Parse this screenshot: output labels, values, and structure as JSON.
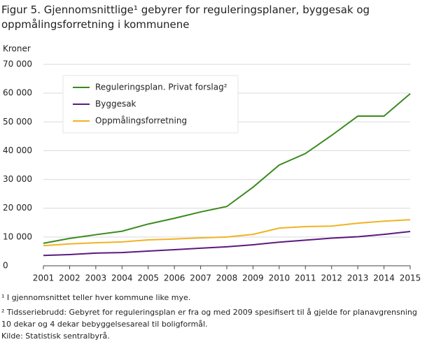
{
  "chart_data": {
    "type": "line",
    "title": "Figur 5. Gjennomsnittlige¹ gebyrer for reguleringsplaner, byggesak og oppmålingsforretning i kommunene",
    "ylabel": "Kroner",
    "x": [
      2001,
      2002,
      2003,
      2004,
      2005,
      2006,
      2007,
      2008,
      2009,
      2010,
      2011,
      2012,
      2013,
      2014,
      2015
    ],
    "xlim": [
      2001,
      2015
    ],
    "xticks": [
      2001,
      2002,
      2003,
      2004,
      2005,
      2006,
      2007,
      2008,
      2009,
      2010,
      2011,
      2012,
      2013,
      2014,
      2015
    ],
    "ylim": [
      0,
      70000
    ],
    "yticks": [
      0,
      {
        "value": 10000,
        "label": "10 000"
      },
      {
        "value": 20000,
        "label": "20 000"
      },
      {
        "value": 30000,
        "label": "30 000"
      },
      {
        "value": 40000,
        "label": "40 000"
      },
      {
        "value": 50000,
        "label": "50 000"
      },
      {
        "value": 60000,
        "label": "60 000"
      },
      {
        "value": 70000,
        "label": "70 000"
      }
    ],
    "grid": true,
    "legend": "upper left",
    "series": [
      {
        "name": "Reguleringsplan. Privat forslag²",
        "color": "#3a8a1e",
        "values": [
          7800,
          9500,
          10800,
          12000,
          14500,
          16500,
          18700,
          20600,
          27300,
          35000,
          39000,
          45300,
          52000,
          52000,
          59800
        ]
      },
      {
        "name": "Byggesak",
        "color": "#5c1a7e",
        "values": [
          3600,
          3900,
          4400,
          4600,
          5100,
          5600,
          6100,
          6600,
          7300,
          8200,
          8900,
          9600,
          10100,
          10900,
          11900
        ]
      },
      {
        "name": "Oppmålingsforretning",
        "color": "#f0b323",
        "values": [
          7000,
          7600,
          8000,
          8300,
          9000,
          9300,
          9700,
          10000,
          10900,
          13100,
          13600,
          13800,
          14800,
          15500,
          16000
        ]
      }
    ],
    "notes": [
      "¹ I gjennomsnittet teller hver kommune  like mye.",
      "² Tidsseriebrudd: Gebyret for reguleringsplan er fra og med 2009  spesifisert til å gjelde for planavgrensning 10 dekar og 4 dekar bebyggelsesareal til boligformål.",
      "Kilde: Statistisk sentralbyrå."
    ]
  }
}
